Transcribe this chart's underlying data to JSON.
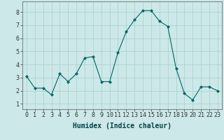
{
  "x": [
    0,
    1,
    2,
    3,
    4,
    5,
    6,
    7,
    8,
    9,
    10,
    11,
    12,
    13,
    14,
    15,
    16,
    17,
    18,
    19,
    20,
    21,
    22,
    23
  ],
  "y": [
    3.1,
    2.2,
    2.2,
    1.7,
    3.3,
    2.7,
    3.3,
    4.5,
    4.6,
    2.7,
    2.7,
    4.9,
    6.5,
    7.4,
    8.1,
    8.1,
    7.3,
    6.9,
    3.7,
    1.8,
    1.3,
    2.3,
    2.3,
    2.0
  ],
  "line_color": "#006666",
  "marker": "D",
  "marker_size": 2.0,
  "bg_color": "#cce8e8",
  "grid_color": "#aacfcf",
  "xlabel": "Humidex (Indice chaleur)",
  "xlabel_fontsize": 7,
  "tick_fontsize": 6,
  "ylim": [
    0.6,
    8.8
  ],
  "xlim": [
    -0.5,
    23.5
  ],
  "yticks": [
    1,
    2,
    3,
    4,
    5,
    6,
    7,
    8
  ],
  "xticks": [
    0,
    1,
    2,
    3,
    4,
    5,
    6,
    7,
    8,
    9,
    10,
    11,
    12,
    13,
    14,
    15,
    16,
    17,
    18,
    19,
    20,
    21,
    22,
    23
  ]
}
